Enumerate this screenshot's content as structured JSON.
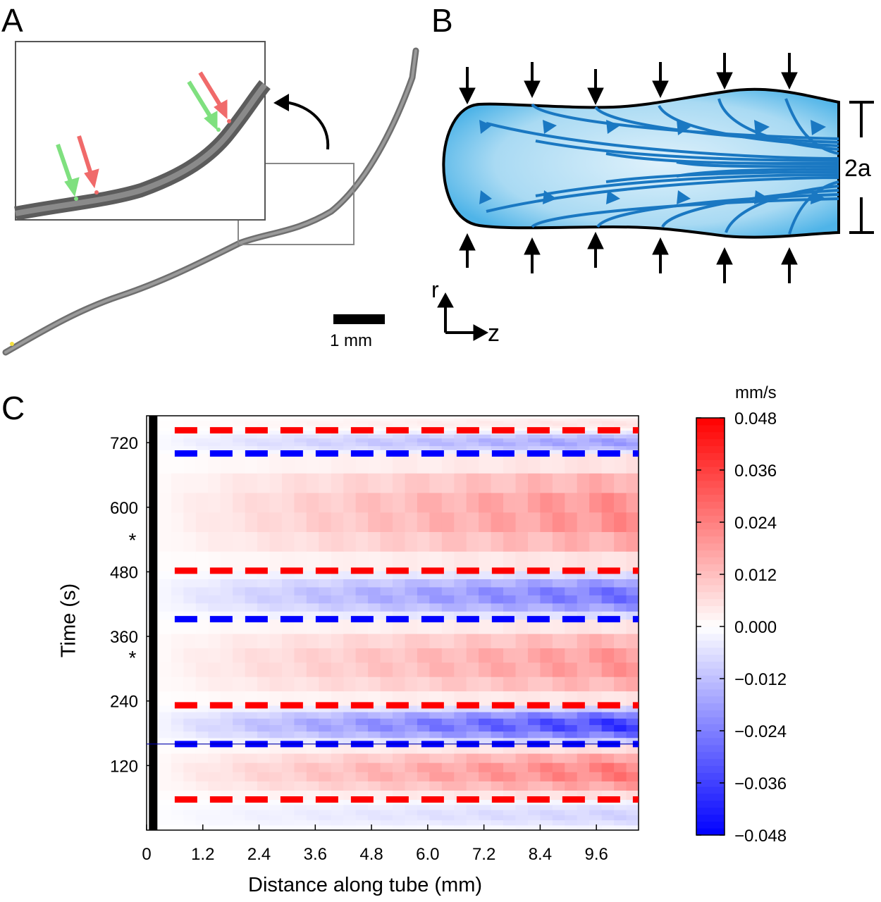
{
  "panels": {
    "a": "A",
    "b": "B",
    "c": "C"
  },
  "panel_a": {
    "scale_bar_label": "1 mm",
    "arrow_colors": {
      "green": "#7fe07f",
      "red": "#f06a6a"
    },
    "main_image_icon": "tube-photo-icon",
    "inset_image_icon": "tube-zoom-icon"
  },
  "panel_b": {
    "width_label": "2a",
    "axis_r": "r",
    "axis_z": "z",
    "fill_color": "#9fd4f0",
    "streamline_color": "#1a78c2"
  },
  "chart_data": {
    "type": "heatmap",
    "xlabel": "Distance along tube (mm)",
    "ylabel": "Time (s)",
    "x_ticks": [
      "0",
      "1.2",
      "2.4",
      "3.6",
      "4.8",
      "6.0",
      "7.2",
      "8.4",
      "9.6"
    ],
    "x_tick_values": [
      0,
      1.2,
      2.4,
      3.6,
      4.8,
      6.0,
      7.2,
      8.4,
      9.6
    ],
    "y_ticks": [
      "120",
      "240",
      "360",
      "480",
      "600",
      "720"
    ],
    "y_tick_values": [
      120,
      240,
      360,
      480,
      600,
      720
    ],
    "xlim": [
      0,
      10.5
    ],
    "ylim": [
      0,
      770
    ],
    "asterisks": [
      {
        "label": "*",
        "time": 326
      },
      {
        "label": "*",
        "time": 545
      }
    ],
    "colorbar": {
      "unit": "mm/s",
      "ticks": [
        "0.048",
        "0.036",
        "0.024",
        "0.012",
        "0.000",
        "−0.012",
        "−0.024",
        "−0.036",
        "−0.048"
      ],
      "min": -0.048,
      "max": 0.048,
      "colors": {
        "max": "#ff0000",
        "zero": "#ffffff",
        "min": "#0000ff"
      }
    },
    "dashed_lines": [
      {
        "time": 57,
        "color": "red"
      },
      {
        "time": 160,
        "color": "blue"
      },
      {
        "time": 232,
        "color": "red"
      },
      {
        "time": 392,
        "color": "blue"
      },
      {
        "time": 482,
        "color": "red"
      },
      {
        "time": 700,
        "color": "blue"
      },
      {
        "time": 743,
        "color": "red"
      }
    ],
    "bands": [
      {
        "t0": 0,
        "t1": 57,
        "sign": "negative",
        "peak": 0.01
      },
      {
        "t0": 57,
        "t1": 160,
        "sign": "positive",
        "peak": 0.03
      },
      {
        "t0": 160,
        "t1": 232,
        "sign": "negative",
        "peak": 0.044
      },
      {
        "t0": 232,
        "t1": 392,
        "sign": "positive",
        "peak": 0.024
      },
      {
        "t0": 392,
        "t1": 482,
        "sign": "negative",
        "peak": 0.032
      },
      {
        "t0": 482,
        "t1": 700,
        "sign": "positive",
        "peak": 0.026
      },
      {
        "t0": 700,
        "t1": 743,
        "sign": "negative",
        "peak": 0.022
      },
      {
        "t0": 743,
        "t1": 770,
        "sign": "positive",
        "peak": 0.006
      }
    ]
  }
}
